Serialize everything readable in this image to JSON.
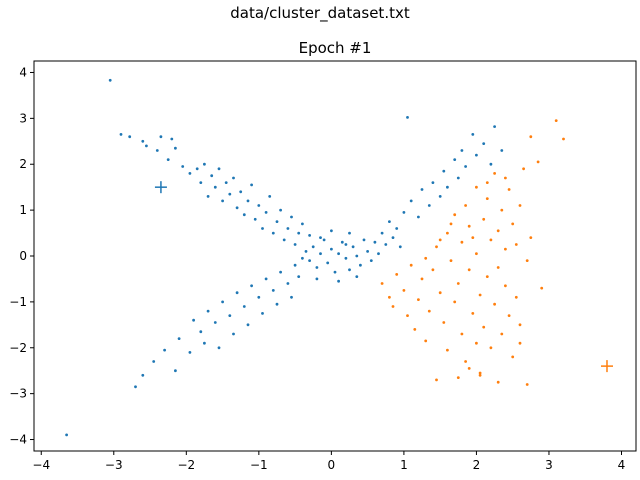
{
  "figure": {
    "suptitle": "data/cluster_dataset.txt"
  },
  "chart_data": {
    "type": "scatter",
    "title": "Epoch #1",
    "xlabel": "",
    "ylabel": "",
    "xlim": [
      -4.1,
      4.2
    ],
    "ylim": [
      -4.25,
      4.25
    ],
    "xticks": [
      -4,
      -3,
      -2,
      -1,
      0,
      1,
      2,
      3,
      4
    ],
    "yticks": [
      -4,
      -3,
      -2,
      -1,
      0,
      1,
      2,
      3,
      4
    ],
    "grid": false,
    "legend": "none",
    "series": [
      {
        "color": "#1f77b4",
        "marker": "dot",
        "description_values": "cluster assigned to centroid 1 (X-shaped band: center blob near origin, arms toward upper-left, lower-left and upper-right)",
        "points": [
          [
            -3.05,
            3.83
          ],
          [
            -2.9,
            2.65
          ],
          [
            -2.78,
            2.6
          ],
          [
            -2.6,
            2.5
          ],
          [
            -2.55,
            2.4
          ],
          [
            -2.4,
            2.3
          ],
          [
            -2.35,
            2.6
          ],
          [
            -2.25,
            2.1
          ],
          [
            -2.2,
            2.55
          ],
          [
            -2.15,
            2.35
          ],
          [
            -2.05,
            1.95
          ],
          [
            -1.95,
            1.8
          ],
          [
            -1.85,
            1.9
          ],
          [
            -1.8,
            1.6
          ],
          [
            -1.75,
            2.0
          ],
          [
            -1.7,
            1.3
          ],
          [
            -1.65,
            1.75
          ],
          [
            -1.6,
            1.5
          ],
          [
            -1.55,
            1.9
          ],
          [
            -1.5,
            1.2
          ],
          [
            -1.45,
            1.6
          ],
          [
            -1.4,
            1.35
          ],
          [
            -1.35,
            1.7
          ],
          [
            -1.3,
            1.05
          ],
          [
            -1.25,
            1.4
          ],
          [
            -1.2,
            0.9
          ],
          [
            -1.15,
            1.2
          ],
          [
            -1.1,
            1.55
          ],
          [
            -1.05,
            0.8
          ],
          [
            -1.0,
            1.1
          ],
          [
            -0.95,
            0.6
          ],
          [
            -0.9,
            0.95
          ],
          [
            -0.85,
            1.3
          ],
          [
            -0.8,
            0.5
          ],
          [
            -0.75,
            0.75
          ],
          [
            -0.7,
            1.0
          ],
          [
            -0.65,
            0.35
          ],
          [
            -0.6,
            0.6
          ],
          [
            -0.55,
            0.85
          ],
          [
            -0.5,
            0.25
          ],
          [
            -0.45,
            0.5
          ],
          [
            -0.4,
            0.7
          ],
          [
            -2.7,
            -2.85
          ],
          [
            -2.6,
            -2.6
          ],
          [
            -2.45,
            -2.3
          ],
          [
            -2.3,
            -2.05
          ],
          [
            -2.15,
            -2.5
          ],
          [
            -2.1,
            -1.8
          ],
          [
            -1.95,
            -2.1
          ],
          [
            -1.9,
            -1.4
          ],
          [
            -1.8,
            -1.65
          ],
          [
            -1.75,
            -1.9
          ],
          [
            -1.7,
            -1.2
          ],
          [
            -1.6,
            -1.45
          ],
          [
            -1.55,
            -2.0
          ],
          [
            -1.5,
            -1.0
          ],
          [
            -1.4,
            -1.3
          ],
          [
            -1.35,
            -1.7
          ],
          [
            -1.3,
            -0.8
          ],
          [
            -1.2,
            -1.1
          ],
          [
            -1.15,
            -1.5
          ],
          [
            -1.1,
            -0.65
          ],
          [
            -1.0,
            -0.9
          ],
          [
            -0.95,
            -1.25
          ],
          [
            -0.9,
            -0.5
          ],
          [
            -0.8,
            -0.75
          ],
          [
            -0.75,
            -1.05
          ],
          [
            -0.7,
            -0.35
          ],
          [
            -0.6,
            -0.6
          ],
          [
            -0.55,
            -0.9
          ],
          [
            -0.5,
            -0.2
          ],
          [
            -0.45,
            -0.45
          ],
          [
            -3.65,
            -3.9
          ],
          [
            -0.35,
            0.1
          ],
          [
            -0.3,
            -0.1
          ],
          [
            -0.25,
            0.2
          ],
          [
            -0.2,
            -0.25
          ],
          [
            -0.15,
            0.05
          ],
          [
            -0.1,
            0.35
          ],
          [
            -0.05,
            -0.15
          ],
          [
            0.0,
            0.15
          ],
          [
            0.05,
            -0.35
          ],
          [
            0.1,
            0.05
          ],
          [
            0.15,
            0.3
          ],
          [
            0.2,
            -0.05
          ],
          [
            0.25,
            -0.3
          ],
          [
            0.3,
            0.2
          ],
          [
            0.35,
            0.0
          ],
          [
            0.4,
            -0.2
          ],
          [
            0.45,
            0.35
          ],
          [
            0.5,
            0.1
          ],
          [
            -0.3,
            0.45
          ],
          [
            -0.2,
            -0.5
          ],
          [
            0.0,
            0.55
          ],
          [
            0.1,
            -0.55
          ],
          [
            0.25,
            0.5
          ],
          [
            0.35,
            -0.45
          ],
          [
            -0.4,
            -0.05
          ],
          [
            0.55,
            -0.1
          ],
          [
            -0.15,
            0.4
          ],
          [
            0.2,
            0.25
          ],
          [
            0.6,
            0.3
          ],
          [
            0.7,
            0.5
          ],
          [
            0.8,
            0.75
          ],
          [
            0.9,
            0.6
          ],
          [
            1.0,
            0.95
          ],
          [
            1.05,
            3.02
          ],
          [
            1.1,
            1.2
          ],
          [
            1.2,
            0.85
          ],
          [
            1.25,
            1.45
          ],
          [
            1.35,
            1.1
          ],
          [
            1.4,
            1.6
          ],
          [
            1.5,
            1.3
          ],
          [
            1.55,
            1.85
          ],
          [
            1.6,
            1.5
          ],
          [
            1.7,
            2.1
          ],
          [
            1.75,
            1.7
          ],
          [
            1.8,
            2.3
          ],
          [
            1.85,
            1.95
          ],
          [
            1.95,
            2.65
          ],
          [
            2.0,
            2.2
          ],
          [
            2.1,
            2.45
          ],
          [
            2.2,
            2.0
          ],
          [
            2.25,
            2.82
          ],
          [
            2.35,
            2.3
          ],
          [
            0.65,
            0.05
          ],
          [
            0.75,
            0.25
          ],
          [
            0.85,
            0.4
          ],
          [
            0.95,
            0.2
          ]
        ]
      },
      {
        "color": "#ff7f0e",
        "marker": "dot",
        "description_values": "cluster assigned to centroid 2 (dense region right of x≈0.6, centered near x≈2)",
        "points": [
          [
            0.7,
            -0.6
          ],
          [
            0.8,
            -0.9
          ],
          [
            0.85,
            -1.1
          ],
          [
            0.9,
            -0.4
          ],
          [
            1.0,
            -0.75
          ],
          [
            1.05,
            -1.3
          ],
          [
            1.1,
            -0.2
          ],
          [
            1.15,
            -1.6
          ],
          [
            1.2,
            -0.95
          ],
          [
            1.25,
            -0.5
          ],
          [
            1.3,
            -1.85
          ],
          [
            1.35,
            -1.2
          ],
          [
            1.4,
            -0.3
          ],
          [
            1.45,
            0.2
          ],
          [
            1.5,
            -0.8
          ],
          [
            1.55,
            -1.45
          ],
          [
            1.6,
            0.5
          ],
          [
            1.6,
            -2.05
          ],
          [
            1.65,
            -0.1
          ],
          [
            1.7,
            -1.0
          ],
          [
            1.7,
            0.9
          ],
          [
            1.75,
            -0.6
          ],
          [
            1.8,
            0.3
          ],
          [
            1.8,
            -1.7
          ],
          [
            1.85,
            -2.3
          ],
          [
            1.85,
            1.1
          ],
          [
            1.9,
            -0.3
          ],
          [
            1.9,
            0.65
          ],
          [
            1.95,
            -1.25
          ],
          [
            2.0,
            1.5
          ],
          [
            2.0,
            0.05
          ],
          [
            2.05,
            -0.85
          ],
          [
            2.05,
            -2.55
          ],
          [
            2.1,
            0.8
          ],
          [
            2.1,
            -1.55
          ],
          [
            2.15,
            1.25
          ],
          [
            2.15,
            -0.45
          ],
          [
            2.2,
            0.35
          ],
          [
            2.2,
            -2.0
          ],
          [
            2.25,
            1.8
          ],
          [
            2.25,
            -1.05
          ],
          [
            2.3,
            0.55
          ],
          [
            2.3,
            -0.25
          ],
          [
            2.35,
            1.0
          ],
          [
            2.35,
            -1.7
          ],
          [
            2.4,
            -0.65
          ],
          [
            2.4,
            0.15
          ],
          [
            2.45,
            1.45
          ],
          [
            2.45,
            -1.3
          ],
          [
            2.5,
            -2.2
          ],
          [
            2.5,
            0.7
          ],
          [
            2.55,
            0.25
          ],
          [
            2.55,
            -0.9
          ],
          [
            2.6,
            1.1
          ],
          [
            2.6,
            -1.5
          ],
          [
            2.65,
            1.9
          ],
          [
            2.7,
            -0.1
          ],
          [
            2.7,
            -2.8
          ],
          [
            2.75,
            2.6
          ],
          [
            2.85,
            2.05
          ],
          [
            2.9,
            -0.7
          ],
          [
            3.1,
            2.95
          ],
          [
            3.2,
            2.55
          ],
          [
            1.45,
            -2.7
          ],
          [
            1.75,
            -2.65
          ],
          [
            2.05,
            -2.6
          ],
          [
            2.3,
            -2.75
          ],
          [
            1.3,
            -0.05
          ],
          [
            1.5,
            0.35
          ],
          [
            1.65,
            0.7
          ],
          [
            1.95,
            0.4
          ],
          [
            2.15,
            1.6
          ],
          [
            2.4,
            1.7
          ],
          [
            2.0,
            -1.9
          ],
          [
            1.9,
            -2.45
          ],
          [
            2.6,
            -1.9
          ],
          [
            2.75,
            0.4
          ]
        ]
      }
    ],
    "centroids": [
      {
        "x": -2.35,
        "y": 1.5,
        "marker": "plus",
        "color": "#1f77b4"
      },
      {
        "x": 3.8,
        "y": -2.4,
        "marker": "plus",
        "color": "#ff7f0e"
      }
    ]
  }
}
